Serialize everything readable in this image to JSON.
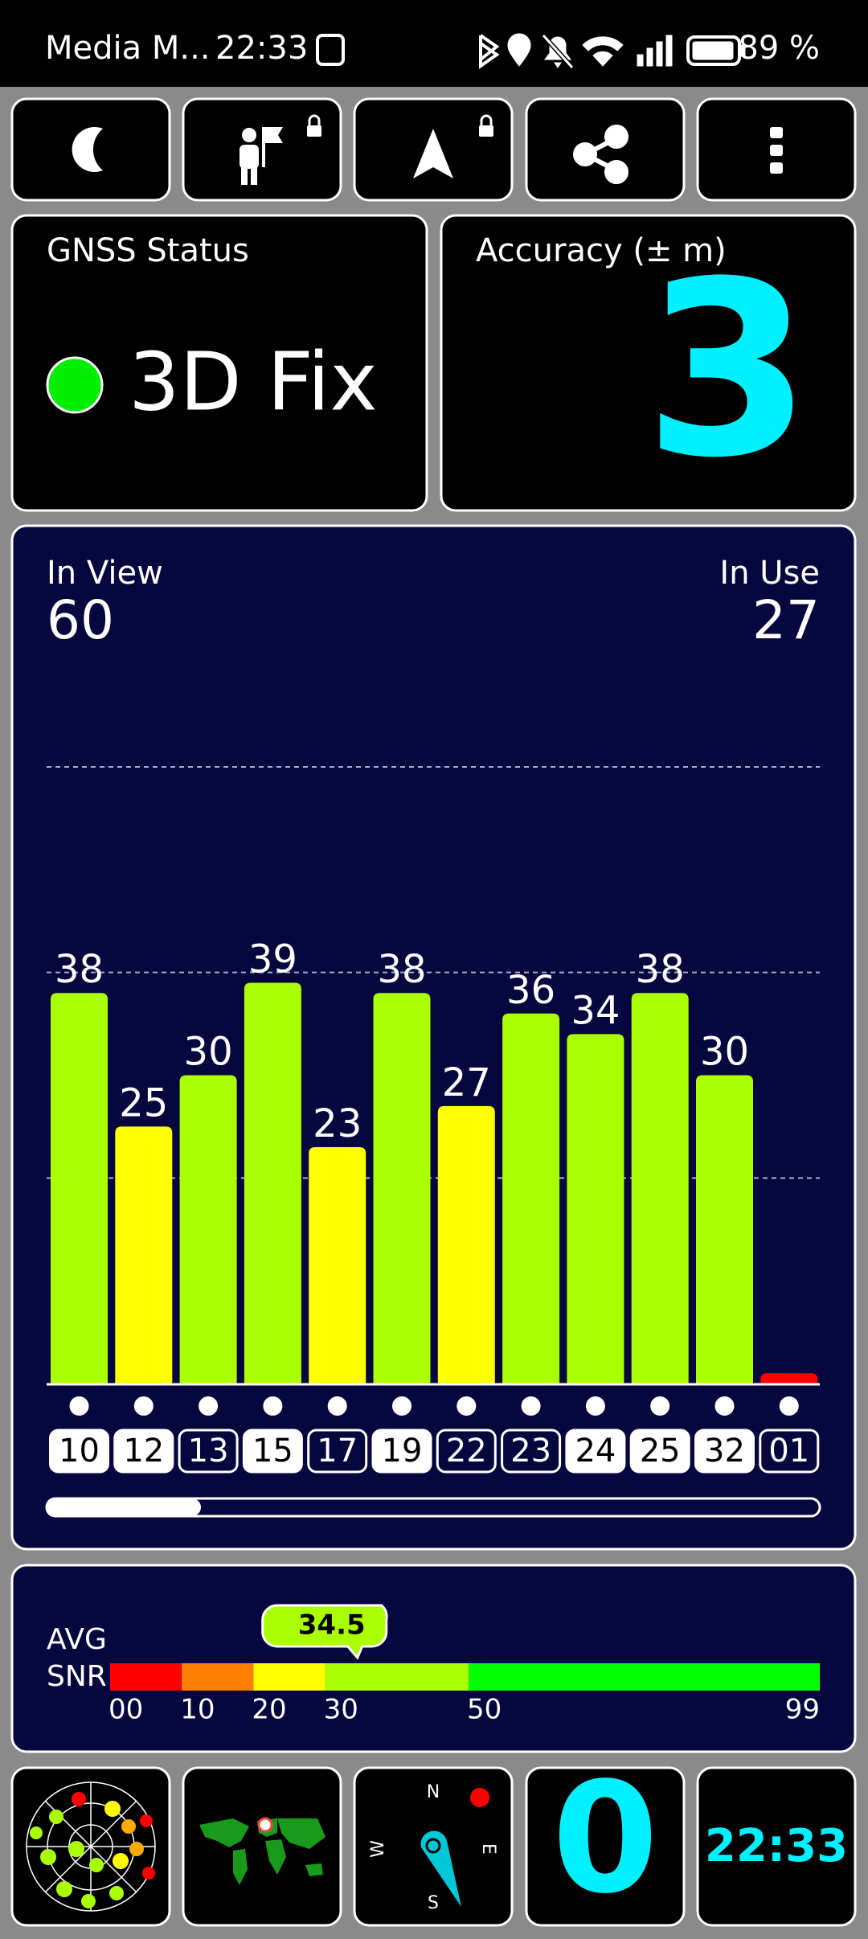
{
  "status_bar": {
    "app": "Media M...",
    "time": "22:33",
    "battery": "89 %"
  },
  "gnss_status": {
    "label": "GNSS Status",
    "value": "3D Fix"
  },
  "accuracy": {
    "label": "Accuracy (± m)",
    "value": 3
  },
  "satellites": {
    "in_view_label": "In View",
    "in_view": 60,
    "in_use_label": "In Use",
    "in_use": 27,
    "chart": {
      "type": "bar",
      "categories": [
        "10",
        "12",
        "13",
        "15",
        "17",
        "19",
        "22",
        "23",
        "24",
        "25",
        "32",
        "01"
      ],
      "values": [
        38,
        25,
        30,
        39,
        23,
        38,
        27,
        36,
        34,
        38,
        30,
        1
      ],
      "value_labels": [
        "38",
        "25",
        "30",
        "39",
        "23",
        "38",
        "27",
        "36",
        "34",
        "38",
        "30",
        null
      ],
      "used": [
        true,
        true,
        false,
        true,
        false,
        true,
        false,
        false,
        true,
        true,
        true,
        false
      ],
      "ylim": [
        0,
        60
      ],
      "yticks": [
        20,
        40,
        60
      ],
      "grid": true
    }
  },
  "snr": {
    "label_top": "AVG",
    "label_bottom": "SNR",
    "average": 34.5,
    "xlim": [
      0,
      99
    ],
    "xticks": [
      {
        "value": 0,
        "label": "00"
      },
      10,
      20,
      30,
      50,
      99
    ],
    "colors": [
      "#ff0000",
      "#ff7f00",
      "#ffff00",
      "#aaff00",
      "#00ff00"
    ]
  },
  "tiles": {
    "count": 0,
    "clock": "22:33",
    "compass": {
      "north": "N",
      "east": "E",
      "south": "S",
      "west": "W"
    }
  }
}
